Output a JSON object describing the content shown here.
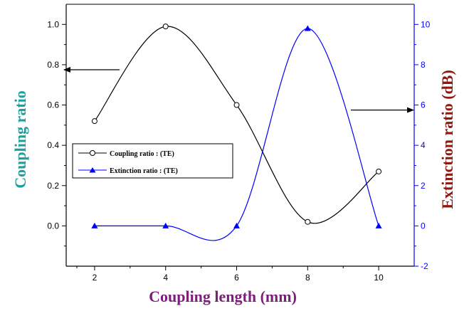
{
  "chart_data": {
    "type": "line",
    "title": "",
    "xlabel": "Coupling length (mm)",
    "ylabel_left": "Coupling ratio",
    "ylabel_right": "Extinction ratio (dB)",
    "x": [
      2,
      4,
      6,
      8,
      10
    ],
    "x_ticks": [
      "2",
      "4",
      "6",
      "8",
      "10"
    ],
    "xlim": [
      1.2,
      11
    ],
    "ylim_left": [
      -0.2,
      1.1
    ],
    "ylim_right": [
      -2,
      11
    ],
    "y_ticks_left": [
      "0.0",
      "0.2",
      "0.4",
      "0.6",
      "0.8",
      "1.0"
    ],
    "y_ticks_right": [
      "-2",
      "0",
      "2",
      "4",
      "6",
      "8",
      "10"
    ],
    "series": [
      {
        "name": "Coupling ratio : (TE)",
        "axis": "left",
        "color": "#000000",
        "marker": "open-circle",
        "values": [
          0.52,
          0.99,
          0.6,
          0.02,
          0.27
        ]
      },
      {
        "name": "Extinction ratio : (TE)",
        "axis": "right",
        "color": "#0000ff",
        "marker": "filled-triangle",
        "values": [
          0.0,
          0.0,
          0.0,
          9.8,
          0.0
        ]
      }
    ],
    "legend": {
      "position": "middle-left",
      "entries": [
        "Coupling ratio : (TE)",
        "Extinction ratio : (TE)"
      ]
    },
    "annotations": [
      {
        "type": "arrow",
        "points_to": "left axis",
        "series": "Coupling ratio : (TE)"
      },
      {
        "type": "arrow",
        "points_to": "right axis",
        "series": "Extinction ratio : (TE)"
      }
    ],
    "colors": {
      "left_axis_title": "#1f9e9e",
      "right_axis_title": "#8b1a10",
      "x_axis_title": "#7a1f7a",
      "right_axis": "#0000ff"
    }
  }
}
